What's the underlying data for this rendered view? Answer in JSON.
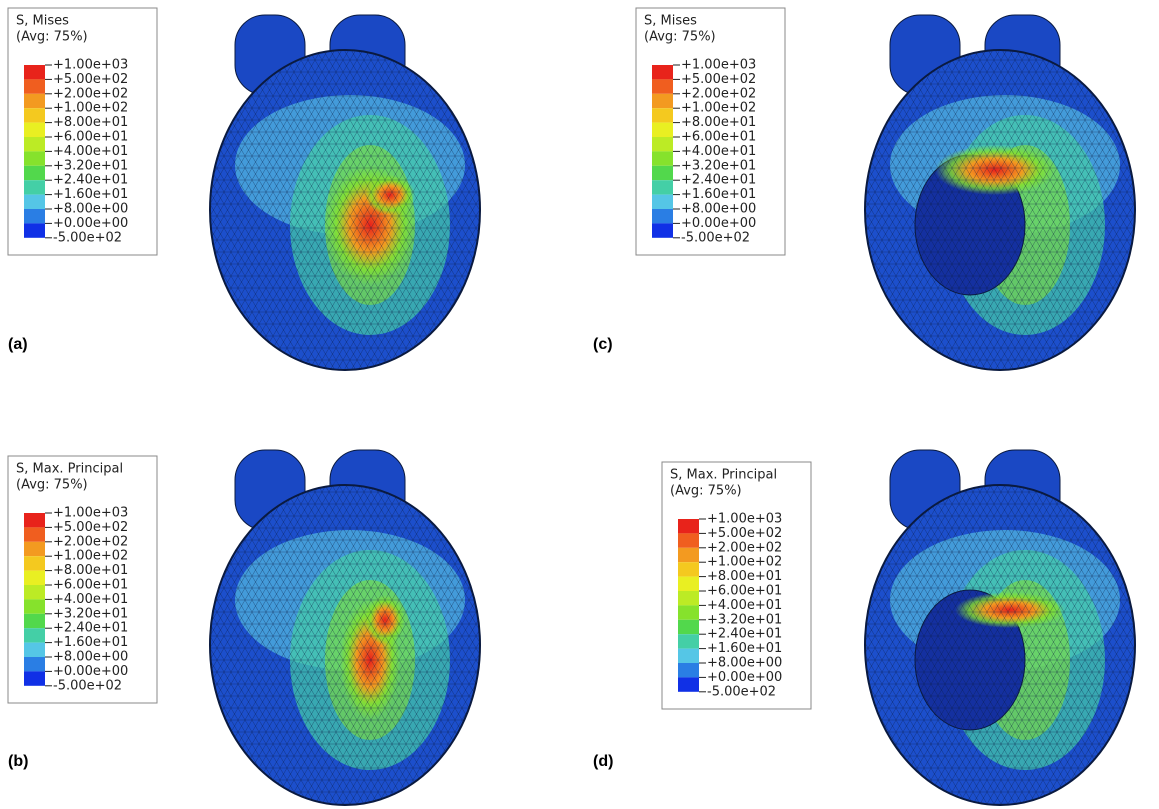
{
  "legend_colors": [
    "#e8231b",
    "#f05e1f",
    "#f39a20",
    "#f4c91f",
    "#e9ef22",
    "#bceb25",
    "#86e22c",
    "#52d84c",
    "#44cfa6",
    "#55c6e6",
    "#2a7ee4",
    "#1030e6"
  ],
  "panels": [
    {
      "label": "(a)",
      "legend": {
        "title": "S, Mises",
        "subtitle": "(Avg: 75%)",
        "ticks": [
          "+1.00e+03",
          "+5.00e+02",
          "+2.00e+02",
          "+1.00e+02",
          "+8.00e+01",
          "+6.00e+01",
          "+4.00e+01",
          "+3.20e+01",
          "+2.40e+01",
          "+1.60e+01",
          "+8.00e+00",
          "+0.00e+00",
          "-5.00e+02"
        ]
      }
    },
    {
      "label": "(b)",
      "legend": {
        "title": "S, Max. Principal",
        "subtitle": "(Avg: 75%)",
        "ticks": [
          "+1.00e+03",
          "+5.00e+02",
          "+2.00e+02",
          "+1.00e+02",
          "+8.00e+01",
          "+6.00e+01",
          "+4.00e+01",
          "+3.20e+01",
          "+2.40e+01",
          "+1.60e+01",
          "+8.00e+00",
          "+0.00e+00",
          "-5.00e+02"
        ]
      }
    },
    {
      "label": "(c)",
      "legend": {
        "title": "S, Mises",
        "subtitle": "(Avg: 75%)",
        "ticks": [
          "+1.00e+03",
          "+5.00e+02",
          "+2.00e+02",
          "+1.00e+02",
          "+8.00e+01",
          "+6.00e+01",
          "+4.00e+01",
          "+3.20e+01",
          "+2.40e+01",
          "+1.60e+01",
          "+8.00e+00",
          "+0.00e+00",
          "-5.00e+02"
        ]
      }
    },
    {
      "label": "(d)",
      "legend": {
        "title": "S, Max. Principal",
        "subtitle": "(Avg: 75%)",
        "ticks": [
          "+1.00e+03",
          "+5.00e+02",
          "+2.00e+02",
          "+1.00e+02",
          "+8.00e+01",
          "+6.00e+01",
          "+4.00e+01",
          "+3.20e+01",
          "+2.40e+01",
          "+1.60e+01",
          "+8.00e+00",
          "+0.00e+00",
          "-5.00e+02"
        ]
      }
    }
  ]
}
